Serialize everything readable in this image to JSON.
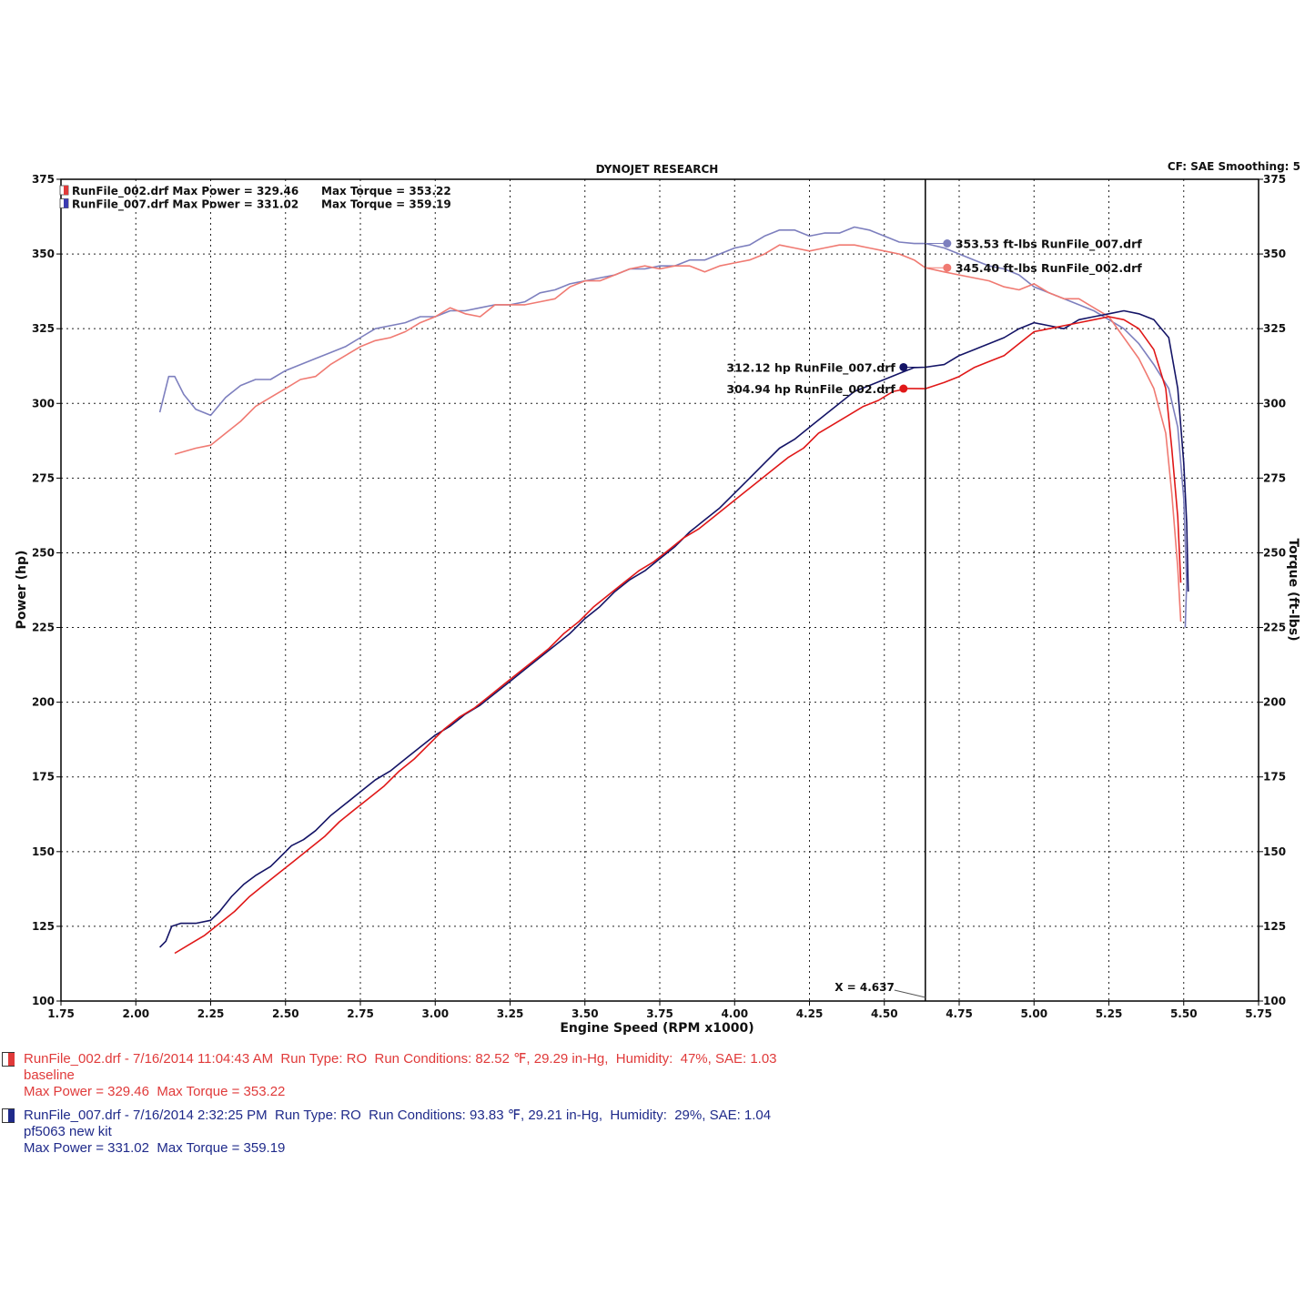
{
  "header": {
    "title": "DYNOJET RESEARCH",
    "settings": "CF: SAE  Smoothing: 5"
  },
  "chart_data": {
    "type": "line",
    "xlabel": "Engine Speed (RPM x1000)",
    "ylabel_left": "Power (hp)",
    "ylabel_right": "Torque (ft-lbs)",
    "xlim": [
      1.75,
      5.75
    ],
    "ylim": [
      100,
      375
    ],
    "x_ticks": [
      "1.75",
      "2.00",
      "2.25",
      "2.50",
      "2.75",
      "3.00",
      "3.25",
      "3.50",
      "3.75",
      "4.00",
      "4.25",
      "4.50",
      "4.75",
      "5.00",
      "5.25",
      "5.50",
      "5.75"
    ],
    "y_ticks": [
      "100",
      "125",
      "150",
      "175",
      "200",
      "225",
      "250",
      "275",
      "300",
      "325",
      "350",
      "375"
    ],
    "grid": true,
    "legend": [
      {
        "label": "RunFile_002.drf Max Power = 329.46",
        "torque": "Max Torque = 353.22",
        "color": "#e03a3a"
      },
      {
        "label": "RunFile_007.drf Max Power = 331.02",
        "torque": "Max Torque = 359.19",
        "color": "#3a3ab0"
      }
    ],
    "cursor": {
      "x": 4.637,
      "label": "X = 4.637"
    },
    "annotations": [
      {
        "text": "353.53 ft-lbs RunFile_007.drf",
        "x": 4.637,
        "y": 353.53,
        "color": "#7d7fbe"
      },
      {
        "text": "345.40 ft-lbs RunFile_002.drf",
        "x": 4.637,
        "y": 345.4,
        "color": "#f07a72"
      },
      {
        "text": "312.12 hp RunFile_007.drf",
        "x": 4.637,
        "y": 312.12,
        "color": "#141466"
      },
      {
        "text": "304.94 hp RunFile_002.drf",
        "x": 4.637,
        "y": 304.94,
        "color": "#e01818"
      }
    ],
    "series": [
      {
        "name": "RunFile_007.drf Torque",
        "color": "#7d7fbe",
        "points": [
          [
            2.08,
            297
          ],
          [
            2.11,
            309
          ],
          [
            2.13,
            309
          ],
          [
            2.16,
            303
          ],
          [
            2.2,
            298
          ],
          [
            2.25,
            296
          ],
          [
            2.3,
            302
          ],
          [
            2.35,
            306
          ],
          [
            2.4,
            308
          ],
          [
            2.45,
            308
          ],
          [
            2.5,
            311
          ],
          [
            2.55,
            313
          ],
          [
            2.6,
            315
          ],
          [
            2.65,
            317
          ],
          [
            2.7,
            319
          ],
          [
            2.75,
            322
          ],
          [
            2.8,
            325
          ],
          [
            2.85,
            326
          ],
          [
            2.9,
            327
          ],
          [
            2.95,
            329
          ],
          [
            3.0,
            329
          ],
          [
            3.05,
            331
          ],
          [
            3.1,
            331
          ],
          [
            3.15,
            332
          ],
          [
            3.2,
            333
          ],
          [
            3.25,
            333
          ],
          [
            3.3,
            334
          ],
          [
            3.35,
            337
          ],
          [
            3.4,
            338
          ],
          [
            3.45,
            340
          ],
          [
            3.5,
            341
          ],
          [
            3.55,
            342
          ],
          [
            3.6,
            343
          ],
          [
            3.65,
            345
          ],
          [
            3.7,
            345
          ],
          [
            3.75,
            346
          ],
          [
            3.8,
            346
          ],
          [
            3.85,
            348
          ],
          [
            3.9,
            348
          ],
          [
            3.95,
            350
          ],
          [
            4.0,
            352
          ],
          [
            4.05,
            353
          ],
          [
            4.1,
            356
          ],
          [
            4.15,
            358
          ],
          [
            4.2,
            358
          ],
          [
            4.25,
            356
          ],
          [
            4.3,
            357
          ],
          [
            4.35,
            357
          ],
          [
            4.4,
            359
          ],
          [
            4.45,
            358
          ],
          [
            4.5,
            356
          ],
          [
            4.55,
            354
          ],
          [
            4.6,
            353.5
          ],
          [
            4.637,
            353.53
          ],
          [
            4.7,
            352
          ],
          [
            4.75,
            350
          ],
          [
            4.8,
            348
          ],
          [
            4.85,
            346
          ],
          [
            4.9,
            345
          ],
          [
            4.95,
            343
          ],
          [
            5.0,
            339
          ],
          [
            5.05,
            337
          ],
          [
            5.1,
            335
          ],
          [
            5.15,
            333
          ],
          [
            5.2,
            331
          ],
          [
            5.25,
            328
          ],
          [
            5.3,
            325
          ],
          [
            5.35,
            320
          ],
          [
            5.4,
            313
          ],
          [
            5.45,
            305
          ],
          [
            5.48,
            292
          ],
          [
            5.5,
            268
          ],
          [
            5.51,
            240
          ],
          [
            5.505,
            225
          ]
        ]
      },
      {
        "name": "RunFile_002.drf Torque",
        "color": "#f07a72",
        "points": [
          [
            2.13,
            283
          ],
          [
            2.2,
            285
          ],
          [
            2.25,
            286
          ],
          [
            2.3,
            290
          ],
          [
            2.35,
            294
          ],
          [
            2.4,
            299
          ],
          [
            2.45,
            302
          ],
          [
            2.5,
            305
          ],
          [
            2.55,
            308
          ],
          [
            2.6,
            309
          ],
          [
            2.65,
            313
          ],
          [
            2.7,
            316
          ],
          [
            2.75,
            319
          ],
          [
            2.8,
            321
          ],
          [
            2.85,
            322
          ],
          [
            2.9,
            324
          ],
          [
            2.95,
            327
          ],
          [
            3.0,
            329
          ],
          [
            3.05,
            332
          ],
          [
            3.1,
            330
          ],
          [
            3.15,
            329
          ],
          [
            3.2,
            333
          ],
          [
            3.25,
            333
          ],
          [
            3.3,
            333
          ],
          [
            3.35,
            334
          ],
          [
            3.4,
            335
          ],
          [
            3.45,
            339
          ],
          [
            3.5,
            341
          ],
          [
            3.55,
            341
          ],
          [
            3.6,
            343
          ],
          [
            3.65,
            345
          ],
          [
            3.7,
            346
          ],
          [
            3.75,
            345
          ],
          [
            3.8,
            346
          ],
          [
            3.85,
            346
          ],
          [
            3.9,
            344
          ],
          [
            3.95,
            346
          ],
          [
            4.0,
            347
          ],
          [
            4.05,
            348
          ],
          [
            4.1,
            350
          ],
          [
            4.15,
            353
          ],
          [
            4.2,
            352
          ],
          [
            4.25,
            351
          ],
          [
            4.3,
            352
          ],
          [
            4.35,
            353
          ],
          [
            4.4,
            353
          ],
          [
            4.45,
            352
          ],
          [
            4.5,
            351
          ],
          [
            4.55,
            350
          ],
          [
            4.6,
            348
          ],
          [
            4.637,
            345.4
          ],
          [
            4.7,
            344
          ],
          [
            4.75,
            343
          ],
          [
            4.8,
            342
          ],
          [
            4.85,
            341
          ],
          [
            4.9,
            339
          ],
          [
            4.95,
            338
          ],
          [
            5.0,
            340
          ],
          [
            5.05,
            337
          ],
          [
            5.1,
            335
          ],
          [
            5.15,
            335
          ],
          [
            5.2,
            332
          ],
          [
            5.25,
            329
          ],
          [
            5.3,
            322
          ],
          [
            5.35,
            315
          ],
          [
            5.4,
            305
          ],
          [
            5.44,
            290
          ],
          [
            5.46,
            270
          ],
          [
            5.48,
            245
          ],
          [
            5.49,
            227
          ]
        ]
      },
      {
        "name": "RunFile_007.drf Power",
        "color": "#141466",
        "points": [
          [
            2.08,
            118
          ],
          [
            2.1,
            120
          ],
          [
            2.12,
            125
          ],
          [
            2.15,
            126
          ],
          [
            2.2,
            126
          ],
          [
            2.25,
            127
          ],
          [
            2.28,
            130
          ],
          [
            2.32,
            135
          ],
          [
            2.36,
            139
          ],
          [
            2.4,
            142
          ],
          [
            2.45,
            145
          ],
          [
            2.48,
            148
          ],
          [
            2.52,
            152
          ],
          [
            2.56,
            154
          ],
          [
            2.6,
            157
          ],
          [
            2.65,
            162
          ],
          [
            2.7,
            166
          ],
          [
            2.75,
            170
          ],
          [
            2.8,
            174
          ],
          [
            2.85,
            177
          ],
          [
            2.9,
            181
          ],
          [
            2.95,
            185
          ],
          [
            3.0,
            189
          ],
          [
            3.05,
            192
          ],
          [
            3.1,
            196
          ],
          [
            3.15,
            199
          ],
          [
            3.2,
            203
          ],
          [
            3.25,
            207
          ],
          [
            3.3,
            211
          ],
          [
            3.35,
            215
          ],
          [
            3.4,
            219
          ],
          [
            3.45,
            223
          ],
          [
            3.5,
            228
          ],
          [
            3.55,
            232
          ],
          [
            3.6,
            237
          ],
          [
            3.65,
            241
          ],
          [
            3.7,
            244
          ],
          [
            3.75,
            248
          ],
          [
            3.8,
            252
          ],
          [
            3.85,
            257
          ],
          [
            3.9,
            261
          ],
          [
            3.95,
            265
          ],
          [
            4.0,
            270
          ],
          [
            4.05,
            275
          ],
          [
            4.1,
            280
          ],
          [
            4.15,
            285
          ],
          [
            4.2,
            288
          ],
          [
            4.25,
            292
          ],
          [
            4.3,
            296
          ],
          [
            4.35,
            300
          ],
          [
            4.4,
            304
          ],
          [
            4.45,
            306
          ],
          [
            4.5,
            308
          ],
          [
            4.55,
            310
          ],
          [
            4.6,
            312
          ],
          [
            4.637,
            312.12
          ],
          [
            4.7,
            313
          ],
          [
            4.75,
            316
          ],
          [
            4.8,
            318
          ],
          [
            4.85,
            320
          ],
          [
            4.9,
            322
          ],
          [
            4.95,
            325
          ],
          [
            5.0,
            327
          ],
          [
            5.05,
            326
          ],
          [
            5.1,
            325
          ],
          [
            5.15,
            328
          ],
          [
            5.2,
            329
          ],
          [
            5.25,
            330
          ],
          [
            5.3,
            331
          ],
          [
            5.35,
            330
          ],
          [
            5.4,
            328
          ],
          [
            5.45,
            322
          ],
          [
            5.48,
            305
          ],
          [
            5.5,
            280
          ],
          [
            5.51,
            260
          ],
          [
            5.515,
            237
          ]
        ]
      },
      {
        "name": "RunFile_002.drf Power",
        "color": "#e01818",
        "points": [
          [
            2.13,
            116
          ],
          [
            2.18,
            119
          ],
          [
            2.23,
            122
          ],
          [
            2.28,
            126
          ],
          [
            2.33,
            130
          ],
          [
            2.38,
            135
          ],
          [
            2.43,
            139
          ],
          [
            2.48,
            143
          ],
          [
            2.53,
            147
          ],
          [
            2.58,
            151
          ],
          [
            2.63,
            155
          ],
          [
            2.68,
            160
          ],
          [
            2.73,
            164
          ],
          [
            2.78,
            168
          ],
          [
            2.83,
            172
          ],
          [
            2.88,
            177
          ],
          [
            2.93,
            181
          ],
          [
            2.98,
            186
          ],
          [
            3.03,
            191
          ],
          [
            3.08,
            195
          ],
          [
            3.13,
            198
          ],
          [
            3.18,
            202
          ],
          [
            3.23,
            206
          ],
          [
            3.28,
            210
          ],
          [
            3.33,
            214
          ],
          [
            3.38,
            218
          ],
          [
            3.43,
            223
          ],
          [
            3.48,
            227
          ],
          [
            3.53,
            232
          ],
          [
            3.58,
            236
          ],
          [
            3.63,
            240
          ],
          [
            3.68,
            244
          ],
          [
            3.73,
            247
          ],
          [
            3.78,
            251
          ],
          [
            3.83,
            255
          ],
          [
            3.88,
            258
          ],
          [
            3.93,
            262
          ],
          [
            3.98,
            266
          ],
          [
            4.03,
            270
          ],
          [
            4.08,
            274
          ],
          [
            4.13,
            278
          ],
          [
            4.18,
            282
          ],
          [
            4.23,
            285
          ],
          [
            4.28,
            290
          ],
          [
            4.33,
            293
          ],
          [
            4.38,
            296
          ],
          [
            4.43,
            299
          ],
          [
            4.48,
            301
          ],
          [
            4.53,
            304
          ],
          [
            4.58,
            305
          ],
          [
            4.637,
            304.94
          ],
          [
            4.7,
            307
          ],
          [
            4.75,
            309
          ],
          [
            4.8,
            312
          ],
          [
            4.85,
            314
          ],
          [
            4.9,
            316
          ],
          [
            4.95,
            320
          ],
          [
            5.0,
            324
          ],
          [
            5.05,
            325
          ],
          [
            5.1,
            326
          ],
          [
            5.15,
            327
          ],
          [
            5.2,
            328
          ],
          [
            5.25,
            329
          ],
          [
            5.3,
            328
          ],
          [
            5.35,
            325
          ],
          [
            5.4,
            318
          ],
          [
            5.44,
            305
          ],
          [
            5.46,
            285
          ],
          [
            5.48,
            262
          ],
          [
            5.49,
            240
          ]
        ]
      }
    ]
  },
  "footer": {
    "run1": {
      "color": "#e03a3a",
      "line1": "RunFile_002.drf - 7/16/2014 11:04:43 AM  Run Type: RO  Run Conditions: 82.52 ℉, 29.29 in-Hg,  Humidity:  47%, SAE: 1.03",
      "line2": "baseline",
      "line3": "Max Power = 329.46  Max Torque = 353.22"
    },
    "run2": {
      "color": "#1f2a8a",
      "line1": "RunFile_007.drf - 7/16/2014 2:32:25 PM  Run Type: RO  Run Conditions: 93.83 ℉, 29.21 in-Hg,  Humidity:  29%, SAE: 1.04",
      "line2": "pf5063 new kit",
      "line3": "Max Power = 331.02  Max Torque = 359.19"
    }
  }
}
